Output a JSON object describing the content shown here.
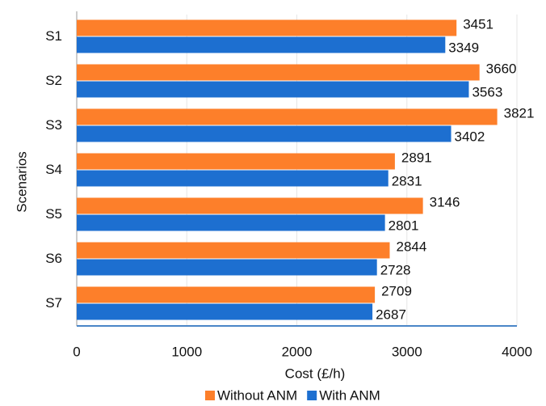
{
  "chart_data": {
    "type": "hbar",
    "xlabel": "Cost (£/h)",
    "ylabel": "Scenarios",
    "categories": [
      "S1",
      "S2",
      "S3",
      "S4",
      "S5",
      "S6",
      "S7"
    ],
    "series": [
      {
        "name": "Without ANM",
        "color": "#fd7f2a",
        "values": [
          3451,
          3660,
          3821,
          2891,
          3146,
          2844,
          2709
        ]
      },
      {
        "name": "With ANM",
        "color": "#1d6fd0",
        "values": [
          3349,
          3563,
          3402,
          2831,
          2801,
          2728,
          2687
        ]
      }
    ],
    "xlim": [
      0,
      4000
    ],
    "xticks": [
      0,
      1000,
      2000,
      3000,
      4000
    ],
    "grid": true,
    "legend": "bottom"
  }
}
